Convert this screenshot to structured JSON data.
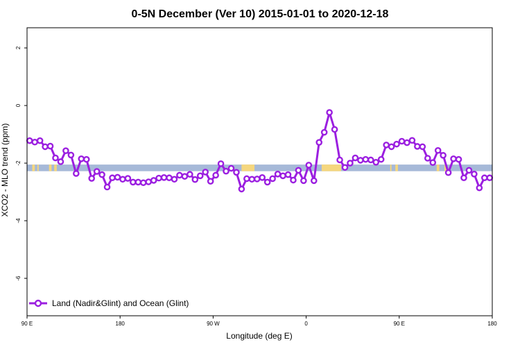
{
  "chart_data": {
    "type": "line",
    "title": "0-5N December (Ver 10)   2015-01-01 to 2020-12-18",
    "xlabel": "Longitude (deg E)",
    "ylabel": "XCO2 - MLO trend (ppm)",
    "xlim": [
      90,
      450
    ],
    "ylim": [
      -7.3,
      2.7
    ],
    "x_ticks": [
      {
        "value": 90,
        "label": "90 E"
      },
      {
        "value": 162,
        "label": "180"
      },
      {
        "value": 234,
        "label": "90 W"
      },
      {
        "value": 306,
        "label": "0"
      },
      {
        "value": 378,
        "label": "90 E"
      },
      {
        "value": 450,
        "label": "180"
      }
    ],
    "y_ticks": [
      {
        "value": 2,
        "label": "2"
      },
      {
        "value": 0,
        "label": "0"
      },
      {
        "value": -2,
        "label": "-2"
      },
      {
        "value": -4,
        "label": "-4"
      },
      {
        "value": -6,
        "label": "-6"
      }
    ],
    "legend": {
      "position": "bottom-left"
    },
    "series": [
      {
        "name": "Land (Nadir&Glint) and Ocean (Glint)",
        "color": "#9b1fe0",
        "x": [
          92,
          96,
          100,
          104,
          108,
          112,
          116,
          120,
          124,
          128,
          132,
          136,
          140,
          144,
          148,
          152,
          156,
          160,
          164,
          168,
          172,
          176,
          180,
          184,
          188,
          192,
          196,
          200,
          204,
          208,
          212,
          216,
          220,
          224,
          228,
          232,
          236,
          240,
          244,
          248,
          252,
          256,
          260,
          264,
          268,
          272,
          276,
          280,
          284,
          288,
          292,
          296,
          300,
          304,
          308,
          312,
          316,
          320,
          324,
          328,
          332,
          336,
          340,
          344,
          348,
          352,
          356,
          360,
          364,
          368,
          372,
          376,
          380,
          384,
          388,
          392,
          396,
          400,
          404,
          408,
          412,
          416,
          420,
          424,
          428,
          432,
          436,
          440,
          444,
          448
        ],
        "y": [
          -1.22,
          -1.27,
          -1.22,
          -1.43,
          -1.41,
          -1.82,
          -1.95,
          -1.57,
          -1.72,
          -2.36,
          -1.85,
          -1.87,
          -2.53,
          -2.29,
          -2.4,
          -2.83,
          -2.51,
          -2.49,
          -2.56,
          -2.53,
          -2.66,
          -2.66,
          -2.68,
          -2.65,
          -2.6,
          -2.52,
          -2.5,
          -2.51,
          -2.56,
          -2.42,
          -2.46,
          -2.39,
          -2.57,
          -2.44,
          -2.31,
          -2.63,
          -2.42,
          -2.02,
          -2.28,
          -2.18,
          -2.32,
          -2.9,
          -2.54,
          -2.56,
          -2.55,
          -2.5,
          -2.66,
          -2.54,
          -2.38,
          -2.44,
          -2.4,
          -2.59,
          -2.25,
          -2.61,
          -2.07,
          -2.61,
          -1.28,
          -0.93,
          -0.24,
          -0.83,
          -1.89,
          -2.15,
          -2.0,
          -1.82,
          -1.9,
          -1.87,
          -1.89,
          -1.97,
          -1.87,
          -1.37,
          -1.43,
          -1.34,
          -1.24,
          -1.29,
          -1.21,
          -1.42,
          -1.43,
          -1.83,
          -1.98,
          -1.56,
          -1.73,
          -2.33,
          -1.85,
          -1.87,
          -2.51,
          -2.25,
          -2.38,
          -2.86,
          -2.51,
          -2.51
        ]
      }
    ],
    "background_band": {
      "y_range": [
        -2.28,
        -2.05
      ],
      "ocean_color": "#a6b9d8",
      "land_color": "#f5d77e",
      "land_segments": [
        [
          94,
          96
        ],
        [
          98,
          99
        ],
        [
          107,
          109
        ],
        [
          111,
          113
        ],
        [
          256,
          266
        ],
        [
          318,
          333
        ],
        [
          371,
          372
        ],
        [
          375,
          377
        ],
        [
          407,
          409
        ],
        [
          413,
          415
        ]
      ]
    }
  }
}
